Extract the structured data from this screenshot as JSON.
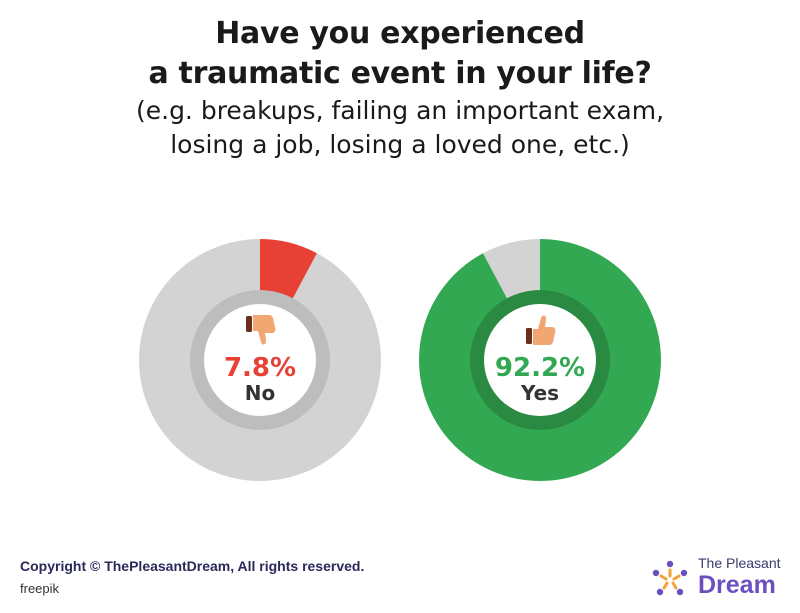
{
  "header": {
    "title_line1": "Have you experienced",
    "title_line2": "a traumatic event in your life?",
    "subtitle_line1": "(e.g. breakups, failing an important exam,",
    "subtitle_line2": "losing a job, losing a loved one, etc.)"
  },
  "chart_data": [
    {
      "type": "pie",
      "labels": [
        "No",
        "Other"
      ],
      "values": [
        7.8,
        92.2
      ],
      "data_label": "7.8%",
      "category_label": "No",
      "icon": "thumbs-down-icon",
      "colors": {
        "highlight": "#e74035",
        "rest": "#d3d3d3",
        "ring": "#bdbdbd",
        "text": "#e74035"
      }
    },
    {
      "type": "pie",
      "labels": [
        "Yes",
        "Other"
      ],
      "values": [
        92.2,
        7.8
      ],
      "data_label": "92.2%",
      "category_label": "Yes",
      "icon": "thumbs-up-icon",
      "colors": {
        "highlight": "#33a852",
        "rest": "#d3d3d3",
        "ring": "#2a8a42",
        "text": "#33a852"
      }
    }
  ],
  "footer": {
    "copyright": "Copyright © ThePleasantDream, All rights reserved.",
    "credit": "freepik"
  },
  "brand": {
    "line1": "The Pleasant",
    "line2": "Dream",
    "logo_icon": "pleasant-dream-logo-icon"
  }
}
